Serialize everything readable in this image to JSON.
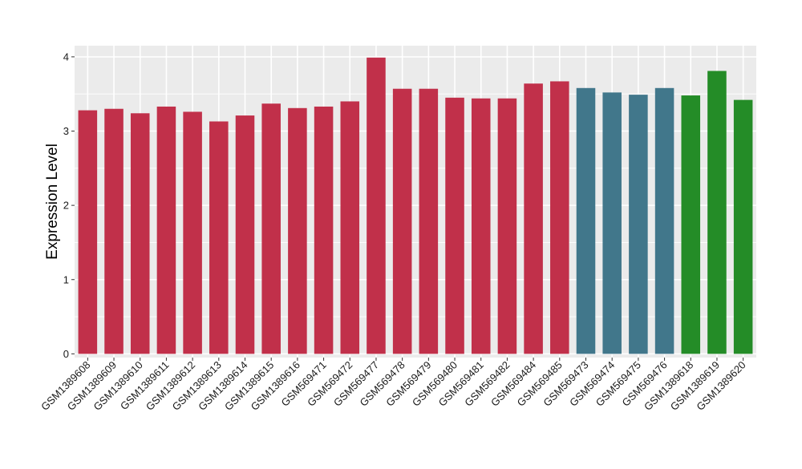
{
  "chart_data": {
    "type": "bar",
    "title": "",
    "xlabel": "",
    "ylabel": "Expression Level",
    "ylim": [
      -0.05,
      4.15
    ],
    "yticks": [
      0,
      1,
      2,
      3,
      4
    ],
    "grid": true,
    "legend": "none",
    "categories": [
      "GSM1389608",
      "GSM1389609",
      "GSM1389610",
      "GSM1389611",
      "GSM1389612",
      "GSM1389613",
      "GSM1389614",
      "GSM1389615",
      "GSM1389616",
      "GSM569471",
      "GSM569472",
      "GSM569477",
      "GSM569478",
      "GSM569479",
      "GSM569480",
      "GSM569481",
      "GSM569482",
      "GSM569484",
      "GSM569485",
      "GSM569473",
      "GSM569474",
      "GSM569475",
      "GSM569476",
      "GSM1389618",
      "GSM1389619",
      "GSM1389620"
    ],
    "values": [
      3.28,
      3.3,
      3.24,
      3.33,
      3.26,
      3.13,
      3.21,
      3.37,
      3.31,
      3.33,
      3.4,
      3.99,
      3.57,
      3.57,
      3.45,
      3.44,
      3.44,
      3.64,
      3.67,
      3.58,
      3.52,
      3.49,
      3.58,
      3.48,
      3.81,
      3.42
    ],
    "bar_colors": [
      "#c1304a",
      "#c1304a",
      "#c1304a",
      "#c1304a",
      "#c1304a",
      "#c1304a",
      "#c1304a",
      "#c1304a",
      "#c1304a",
      "#c1304a",
      "#c1304a",
      "#c1304a",
      "#c1304a",
      "#c1304a",
      "#c1304a",
      "#c1304a",
      "#c1304a",
      "#c1304a",
      "#c1304a",
      "#41778b",
      "#41778b",
      "#41778b",
      "#41778b",
      "#248c27",
      "#248c27",
      "#248c27"
    ],
    "panel_background": "#ebebeb",
    "grid_color": "#ffffff"
  }
}
